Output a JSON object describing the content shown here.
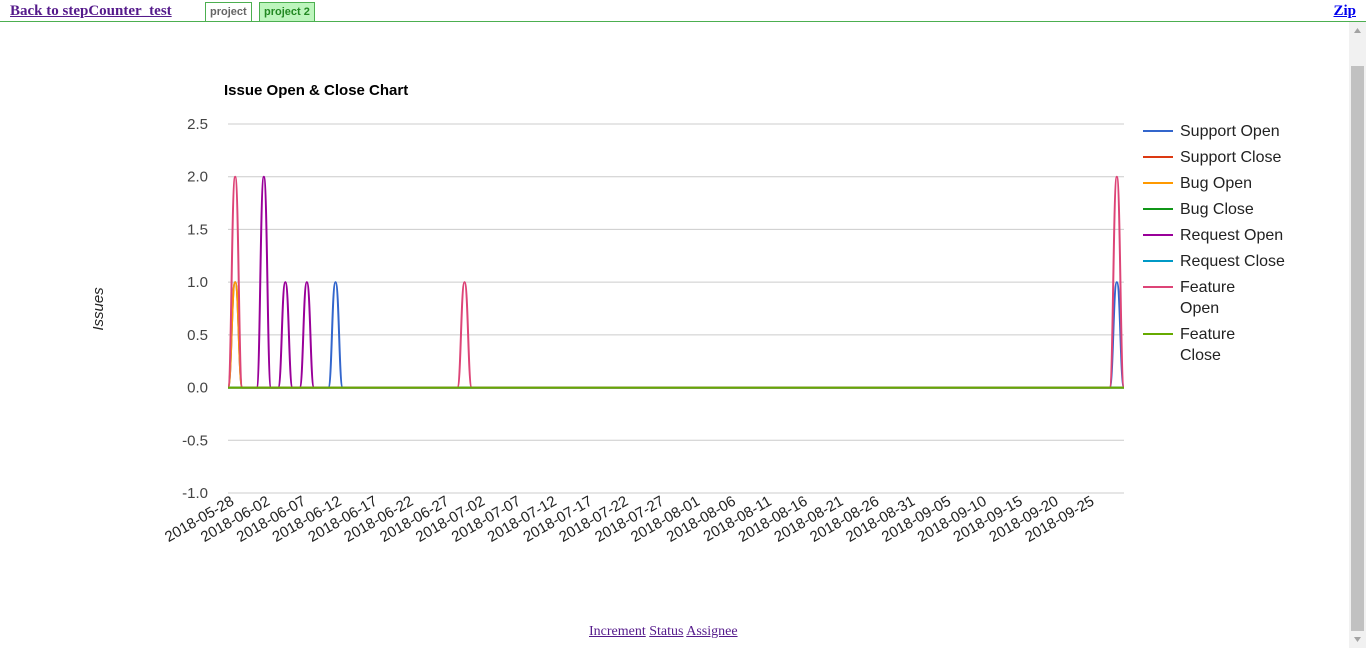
{
  "nav": {
    "back_label": "Back to stepCounter_test",
    "tabs": [
      {
        "label": "project",
        "active": true
      },
      {
        "label": "project 2",
        "active": false
      }
    ],
    "zip_label": "Zip"
  },
  "footer": {
    "links": [
      "Increment",
      "Status",
      "Assignee"
    ]
  },
  "colors": {
    "nav_border": "#4caf50",
    "active_tab_bg": "#ffffff",
    "inactive_tab_bg": "#bdf5bd",
    "link_visited": "#551a8b"
  },
  "chart_data": {
    "type": "line",
    "title": "Issue Open & Close Chart",
    "ylabel": "Issues",
    "xlabel": "",
    "ylim": [
      -1.0,
      2.5
    ],
    "y_ticks": [
      "2.5",
      "2.0",
      "1.5",
      "1.0",
      "0.5",
      "0.0",
      "-0.5",
      "-1.0"
    ],
    "x_ticks": [
      "2018-05-28",
      "2018-06-02",
      "2018-06-07",
      "2018-06-12",
      "2018-06-17",
      "2018-06-22",
      "2018-06-27",
      "2018-07-02",
      "2018-07-07",
      "2018-07-12",
      "2018-07-17",
      "2018-07-22",
      "2018-07-27",
      "2018-08-01",
      "2018-08-06",
      "2018-08-11",
      "2018-08-16",
      "2018-08-21",
      "2018-08-26",
      "2018-08-31",
      "2018-09-05",
      "2018-09-10",
      "2018-09-15",
      "2018-09-20",
      "2018-09-25"
    ],
    "x_start": "2018-05-28",
    "x_end": "2018-09-30",
    "grid": true,
    "legend_position": "right",
    "series": [
      {
        "name": "Support Open",
        "color": "#3366cc",
        "points": [
          [
            "2018-05-28",
            0
          ],
          [
            "2018-05-29",
            1
          ],
          [
            "2018-05-30",
            0
          ],
          [
            "2018-06-11",
            0
          ],
          [
            "2018-06-12",
            1
          ],
          [
            "2018-06-13",
            0
          ],
          [
            "2018-09-28",
            0
          ],
          [
            "2018-09-29",
            1
          ],
          [
            "2018-09-30",
            0
          ]
        ]
      },
      {
        "name": "Support Close",
        "color": "#dc3912",
        "points": [
          [
            "2018-05-28",
            0
          ],
          [
            "2018-09-30",
            0
          ]
        ]
      },
      {
        "name": "Bug Open",
        "color": "#ff9900",
        "points": [
          [
            "2018-05-28",
            0
          ],
          [
            "2018-05-29",
            1
          ],
          [
            "2018-05-30",
            0
          ]
        ]
      },
      {
        "name": "Bug Close",
        "color": "#109618",
        "points": [
          [
            "2018-05-28",
            0
          ],
          [
            "2018-09-30",
            0
          ]
        ]
      },
      {
        "name": "Request Open",
        "color": "#990099",
        "points": [
          [
            "2018-06-01",
            0
          ],
          [
            "2018-06-02",
            2
          ],
          [
            "2018-06-03",
            0
          ],
          [
            "2018-06-04",
            0
          ],
          [
            "2018-06-05",
            1
          ],
          [
            "2018-06-06",
            0
          ],
          [
            "2018-06-07",
            0
          ],
          [
            "2018-06-08",
            1
          ],
          [
            "2018-06-09",
            0
          ]
        ]
      },
      {
        "name": "Request Close",
        "color": "#0099c6",
        "points": [
          [
            "2018-05-28",
            0
          ],
          [
            "2018-09-30",
            0
          ]
        ]
      },
      {
        "name": "Feature Open",
        "color": "#dd4477",
        "points": [
          [
            "2018-05-28",
            0
          ],
          [
            "2018-05-29",
            2
          ],
          [
            "2018-05-30",
            0
          ],
          [
            "2018-06-29",
            0
          ],
          [
            "2018-06-30",
            1
          ],
          [
            "2018-07-01",
            0
          ],
          [
            "2018-09-28",
            0
          ],
          [
            "2018-09-29",
            2
          ],
          [
            "2018-09-30",
            0
          ]
        ]
      },
      {
        "name": "Feature Close",
        "color": "#66aa00",
        "points": [
          [
            "2018-05-28",
            0
          ],
          [
            "2018-09-30",
            0
          ]
        ]
      }
    ]
  }
}
